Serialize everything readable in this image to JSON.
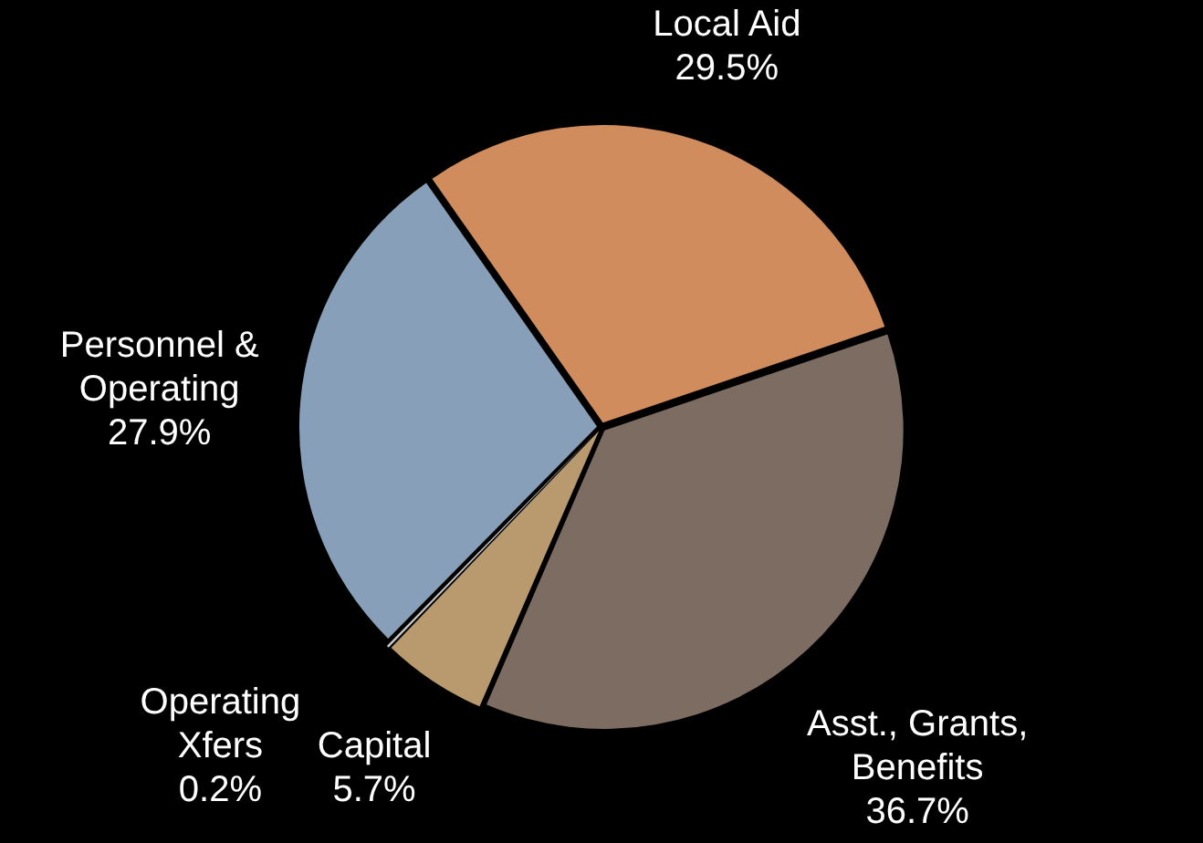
{
  "chart_data": {
    "type": "pie",
    "categories": [
      "Local Aid",
      "Asst., Grants, Benefits",
      "Capital",
      "Operating Xfers",
      "Personnel & Operating"
    ],
    "values": [
      29.5,
      36.7,
      5.7,
      0.2,
      27.9
    ],
    "value_labels": [
      "29.5%",
      "36.7%",
      "5.7%",
      "0.2%",
      "27.9%"
    ],
    "colors": [
      "#d08c5c",
      "#7d6c62",
      "#b99a6e",
      "#c8c8c8",
      "#879fb8"
    ],
    "legend": false
  }
}
